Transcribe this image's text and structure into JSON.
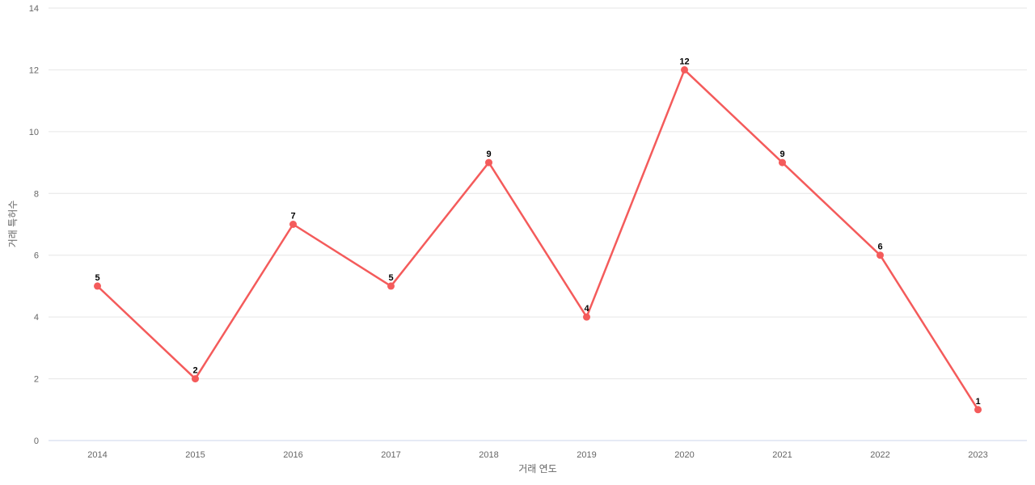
{
  "chart_data": {
    "type": "line",
    "title": "",
    "xlabel": "거래 연도",
    "ylabel": "거래 특허수",
    "categories": [
      "2014",
      "2015",
      "2016",
      "2017",
      "2018",
      "2019",
      "2020",
      "2021",
      "2022",
      "2023"
    ],
    "values": [
      5,
      2,
      7,
      5,
      9,
      4,
      12,
      9,
      6,
      1
    ],
    "data_labels": [
      "5",
      "2",
      "7",
      "5",
      "9",
      "4",
      "12",
      "9",
      "6",
      "1"
    ],
    "ylim": [
      0,
      14
    ],
    "y_ticks": [
      0,
      2,
      4,
      6,
      8,
      10,
      12,
      14
    ],
    "grid": true,
    "legend": "none",
    "colors": {
      "series": "#f45b5b",
      "grid": "#e6e6e6",
      "axis_line": "#ccd6eb",
      "tick_label": "#666666",
      "axis_title": "#666666",
      "data_label": "#000000",
      "background": "#ffffff"
    }
  }
}
